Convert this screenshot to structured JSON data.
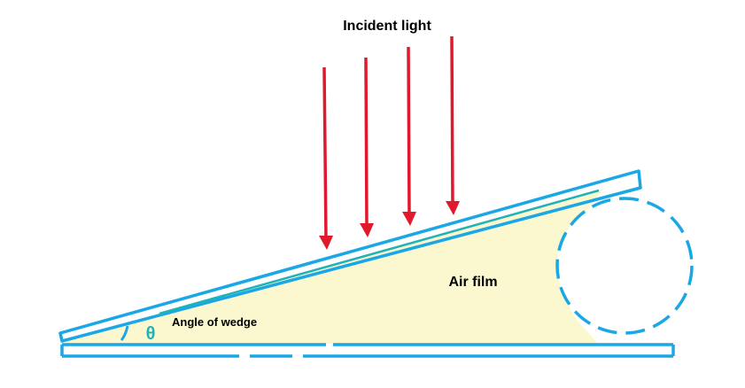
{
  "labels": {
    "incident_light": "Incident light",
    "air_film": "Air film",
    "angle_of_wedge": "Angle of wedge",
    "theta_symbol": "θ"
  },
  "colors": {
    "plate": "#1aa7e6",
    "arrow": "#e0192c",
    "air_film": "#fbf8cf",
    "theta": "#1fb3b6",
    "background": "#ffffff"
  }
}
